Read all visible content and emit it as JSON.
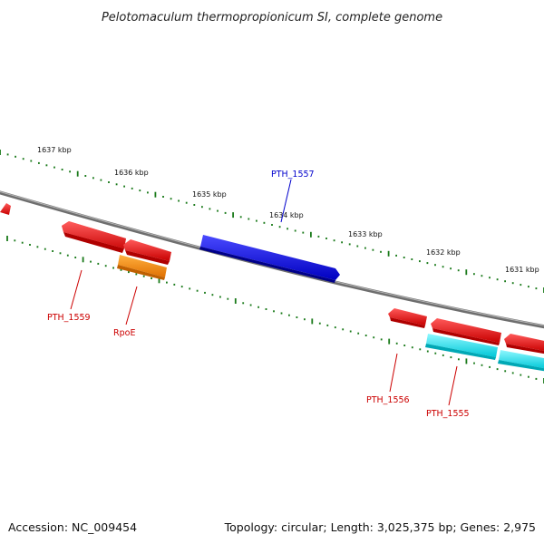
{
  "title": "Pelotomaculum thermopropionicum SI, complete genome",
  "footer": {
    "accession": "Accession: NC_009454",
    "summary": "Topology: circular; Length: 3,025,375 bp; Genes: 2,975"
  },
  "colors": {
    "backbone": "#777777",
    "tick": "#1a7a1a",
    "gene_red": "#ee0000",
    "gene_orange": "#ff8c00",
    "gene_blue": "#0000ee",
    "gene_cyan": "#00e5ee",
    "label_red": "#cc0000",
    "label_blue": "#0000cc"
  },
  "ruler_labels": [
    "1637 kbp",
    "1636 kbp",
    "1635 kbp",
    "1634 kbp",
    "1633 kbp",
    "1632 kbp",
    "1631 kbp"
  ],
  "gene_labels": [
    {
      "id": "PTH_1559",
      "text": "PTH_1559",
      "color": "red"
    },
    {
      "id": "RpoE",
      "text": "RpoE",
      "color": "red"
    },
    {
      "id": "PTH_1557",
      "text": "PTH_1557",
      "color": "blue"
    },
    {
      "id": "PTH_1556",
      "text": "PTH_1556",
      "color": "red"
    },
    {
      "id": "PTH_1555",
      "text": "PTH_1555",
      "color": "red"
    }
  ]
}
